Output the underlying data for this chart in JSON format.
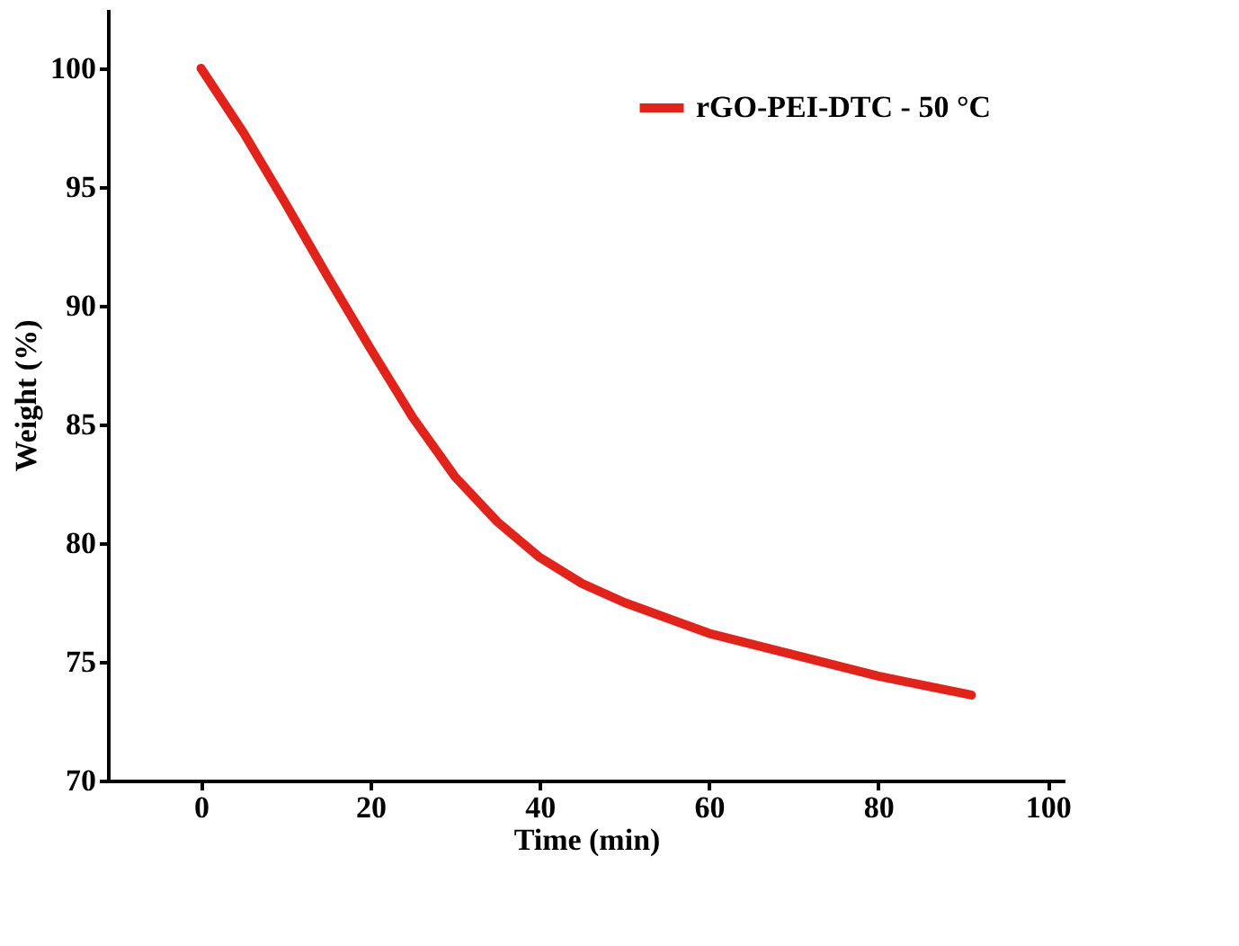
{
  "chart_data": {
    "type": "line",
    "xlabel": "Time (min)",
    "ylabel": "Weight (%)",
    "x": [
      0,
      5,
      10,
      15,
      20,
      25,
      30,
      35,
      40,
      45,
      50,
      60,
      70,
      80,
      91
    ],
    "series": [
      {
        "name": "rGO-PEI-DTC - 50 °C",
        "color": "#e0231b",
        "values": [
          100,
          97.3,
          94.3,
          91.2,
          88.2,
          85.3,
          82.8,
          80.9,
          79.4,
          78.3,
          77.5,
          76.2,
          75.3,
          74.4,
          73.6
        ]
      }
    ],
    "xlim": [
      -11,
      102
    ],
    "ylim": [
      70,
      102.5
    ],
    "xticks": [
      0,
      20,
      40,
      60,
      80,
      100
    ],
    "yticks": [
      70,
      75,
      80,
      85,
      90,
      95,
      100
    ],
    "legend": "top right",
    "grid": false,
    "marker": "none",
    "line_style": "solid"
  }
}
